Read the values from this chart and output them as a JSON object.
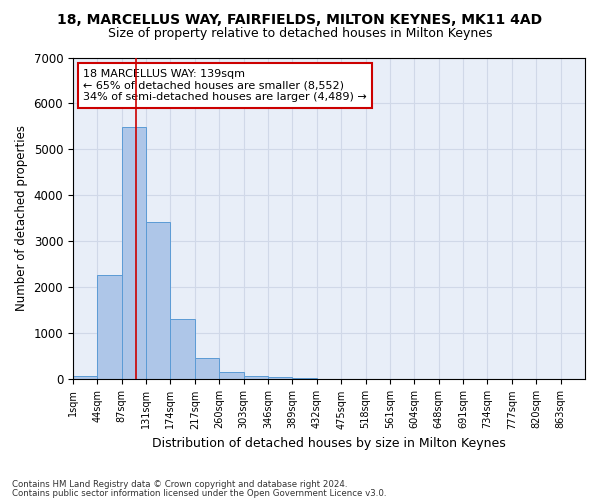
{
  "title": "18, MARCELLUS WAY, FAIRFIELDS, MILTON KEYNES, MK11 4AD",
  "subtitle": "Size of property relative to detached houses in Milton Keynes",
  "xlabel": "Distribution of detached houses by size in Milton Keynes",
  "ylabel": "Number of detached properties",
  "footnote1": "Contains HM Land Registry data © Crown copyright and database right 2024.",
  "footnote2": "Contains public sector information licensed under the Open Government Licence v3.0.",
  "bin_labels": [
    "1sqm",
    "44sqm",
    "87sqm",
    "131sqm",
    "174sqm",
    "217sqm",
    "260sqm",
    "303sqm",
    "346sqm",
    "389sqm",
    "432sqm",
    "475sqm",
    "518sqm",
    "561sqm",
    "604sqm",
    "648sqm",
    "691sqm",
    "734sqm",
    "777sqm",
    "820sqm",
    "863sqm"
  ],
  "bar_values": [
    80,
    2280,
    5480,
    3430,
    1310,
    470,
    160,
    80,
    60,
    40,
    0,
    0,
    0,
    0,
    0,
    0,
    0,
    0,
    0,
    0,
    0
  ],
  "bar_color": "#aec6e8",
  "bar_edge_color": "#5b9bd5",
  "grid_color": "#d0d8e8",
  "bg_color": "#e8eef8",
  "annotation_text": "18 MARCELLUS WAY: 139sqm\n← 65% of detached houses are smaller (8,552)\n34% of semi-detached houses are larger (4,489) →",
  "annotation_box_color": "#ffffff",
  "annotation_box_edge": "#cc0000",
  "vline_x": 2.58,
  "vline_color": "#cc0000",
  "ylim": [
    0,
    7000
  ],
  "yticks": [
    0,
    1000,
    2000,
    3000,
    4000,
    5000,
    6000,
    7000
  ]
}
